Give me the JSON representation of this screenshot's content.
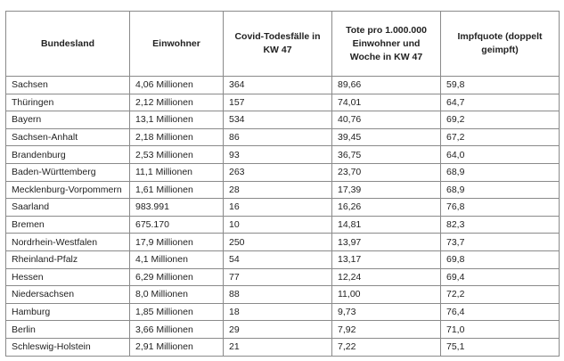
{
  "table": {
    "headers": [
      "Bundesland",
      "Einwohner",
      "Covid-Todesfälle in KW 47",
      "Tote pro 1.000.000 Einwohner und Woche in KW 47",
      "Impfquote (doppelt geimpft)"
    ],
    "rows": [
      [
        "Sachsen",
        "4,06 Millionen",
        "364",
        "89,66",
        "59,8"
      ],
      [
        "Thüringen",
        "2,12 Millionen",
        "157",
        "74,01",
        "64,7"
      ],
      [
        "Bayern",
        "13,1 Millionen",
        "534",
        "40,76",
        "69,2"
      ],
      [
        "Sachsen-Anhalt",
        "2,18 Millionen",
        "86",
        "39,45",
        "67,2"
      ],
      [
        "Brandenburg",
        "2,53 Millionen",
        "93",
        "36,75",
        "64,0"
      ],
      [
        "Baden-Württemberg",
        "11,1 Millionen",
        "263",
        "23,70",
        "68,9"
      ],
      [
        "Mecklenburg-Vorpommern",
        "1,61 Millionen",
        "28",
        "17,39",
        "68,9"
      ],
      [
        "Saarland",
        "983.991",
        "16",
        "16,26",
        "76,8"
      ],
      [
        "Bremen",
        "675.170",
        "10",
        "14,81",
        "82,3"
      ],
      [
        "Nordrhein-Westfalen",
        "17,9 Millionen",
        "250",
        "13,97",
        "73,7"
      ],
      [
        "Rheinland-Pfalz",
        "4,1 Millionen",
        "54",
        "13,17",
        "69,8"
      ],
      [
        "Hessen",
        "6,29 Millionen",
        "77",
        "12,24",
        "69,4"
      ],
      [
        "Niedersachsen",
        "8,0 Millionen",
        "88",
        "11,00",
        "72,2"
      ],
      [
        "Hamburg",
        "1,85 Millionen",
        "18",
        "9,73",
        "76,4"
      ],
      [
        "Berlin",
        "3,66 Millionen",
        "29",
        "7,92",
        "71,0"
      ],
      [
        "Schleswig-Holstein",
        "2,91 Millionen",
        "21",
        "7,22",
        "75,1"
      ]
    ]
  }
}
